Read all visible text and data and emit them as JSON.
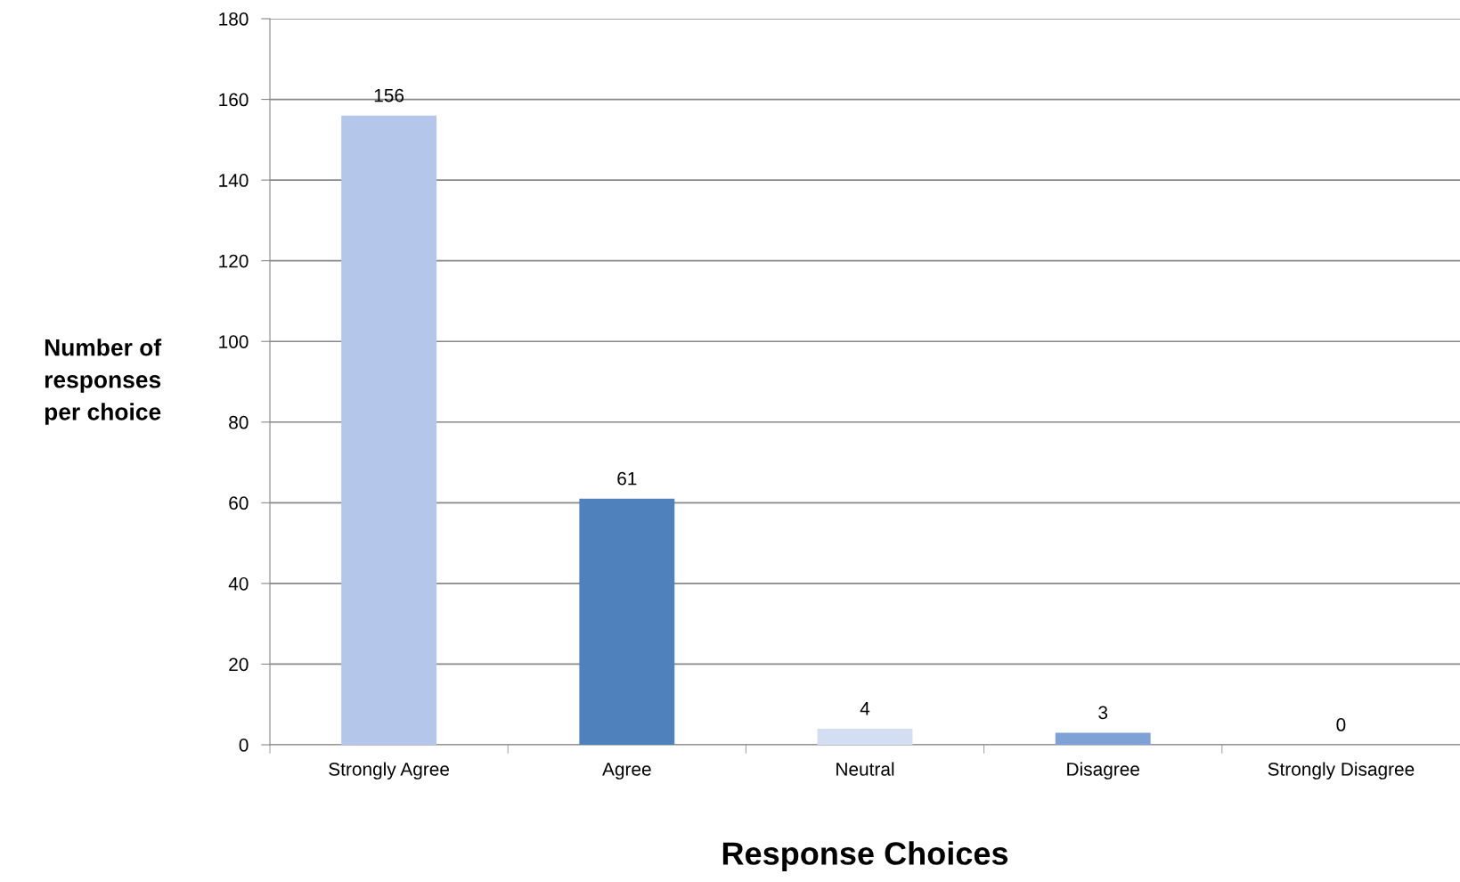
{
  "chart_data": {
    "type": "bar",
    "xlabel": "Response Choices",
    "ylabel": "Number of\nresponses\nper choice",
    "categories": [
      "Strongly Agree",
      "Agree",
      "Neutral",
      "Disagree",
      "Strongly Disagree"
    ],
    "values": [
      156,
      61,
      4,
      3,
      0
    ],
    "colors": [
      "#b4c6ea",
      "#4f81bd",
      "#d3def2",
      "#7fa2d6",
      "#4f81bd"
    ],
    "ylim": [
      0,
      180
    ],
    "yticks": [
      0,
      20,
      40,
      60,
      80,
      100,
      120,
      140,
      160,
      180
    ],
    "grid": "y",
    "data_labels": true
  }
}
